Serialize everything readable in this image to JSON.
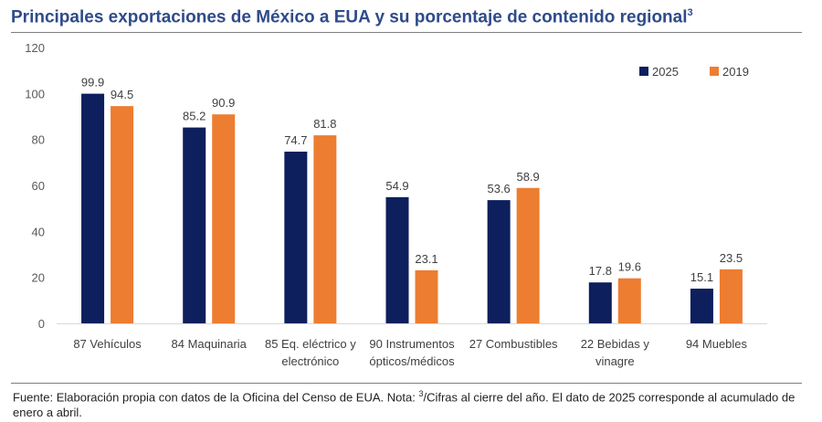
{
  "title": "Principales exportaciones de México a EUA y su porcentaje de contenido regional",
  "title_sup": "3",
  "footnote": {
    "pre": "Fuente: Elaboración propia con datos de la Oficina del Censo de EUA. Nota: ",
    "sup": "3",
    "post": "/Cifras al cierre del año. El dato de 2025 corresponde al acumulado de enero a abril."
  },
  "chart_data": {
    "type": "bar",
    "categories": [
      [
        "87 Vehículos"
      ],
      [
        "84 Maquinaria"
      ],
      [
        "85 Eq. eléctrico y",
        "electrónico"
      ],
      [
        "90 Instrumentos",
        "ópticos/médicos"
      ],
      [
        "27 Combustibles"
      ],
      [
        "22 Bebidas y",
        "vinagre"
      ],
      [
        "94 Muebles"
      ]
    ],
    "series": [
      {
        "name": "2025",
        "color": "#0d1f5c",
        "values": [
          99.9,
          85.2,
          74.7,
          54.9,
          53.6,
          17.8,
          15.1
        ]
      },
      {
        "name": "2019",
        "color": "#ed7d31",
        "values": [
          94.5,
          90.9,
          81.8,
          23.1,
          58.9,
          19.6,
          23.5
        ]
      }
    ],
    "ylim": [
      0,
      120
    ],
    "yticks": [
      0,
      20,
      40,
      60,
      80,
      100,
      120
    ],
    "grid": false,
    "legend": "top-right"
  }
}
